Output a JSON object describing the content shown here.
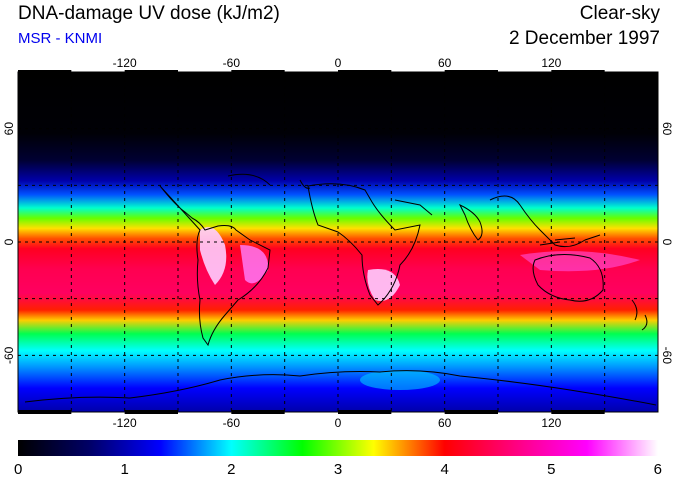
{
  "header": {
    "title": "DNA-damage UV dose (kJ/m2)",
    "subtitle": "MSR - KNMI",
    "condition": "Clear-sky",
    "date": "2 December 1997"
  },
  "map": {
    "lon_ticks": [
      -120,
      -60,
      0,
      60,
      120
    ],
    "lat_ticks": [
      60,
      0,
      -60
    ],
    "lon_range": [
      -180,
      180
    ],
    "lat_range": [
      -90,
      90
    ],
    "grid_lon": [
      -150,
      -120,
      -90,
      -60,
      -30,
      0,
      30,
      60,
      90,
      120,
      150
    ],
    "grid_lat": [
      -60,
      -30,
      0,
      30,
      60
    ]
  },
  "colorbar": {
    "ticks": [
      "0",
      "1",
      "2",
      "3",
      "4",
      "5",
      "6"
    ],
    "colors": [
      "#000000",
      "#000066",
      "#0000ff",
      "#00ffff",
      "#00ff00",
      "#ffff00",
      "#ff0000",
      "#ff0080",
      "#ff00ff",
      "#ffffff"
    ]
  }
}
